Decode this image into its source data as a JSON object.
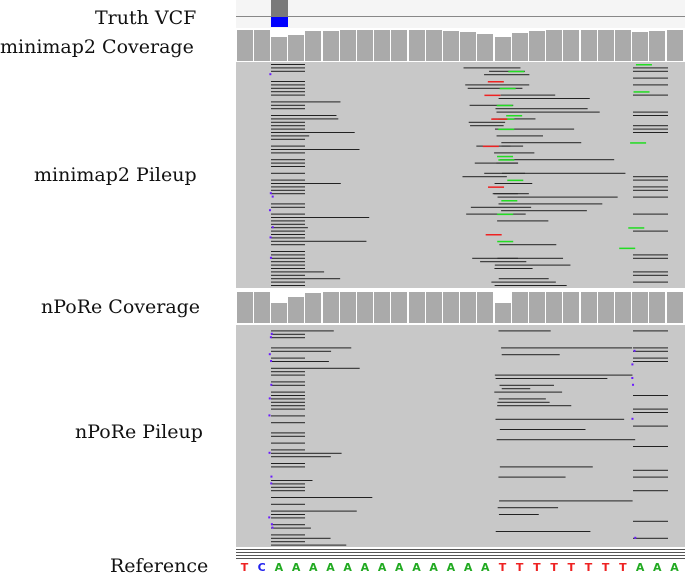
{
  "labels": {
    "truth_vcf": "Truth VCF",
    "minimap2_coverage": "minimap2 Coverage",
    "minimap2_pileup": "minimap2 Pileup",
    "npore_coverage": "nPoRe Coverage",
    "npore_pileup": "nPoRe Pileup",
    "reference": "Reference"
  },
  "reference": {
    "bases": [
      "T",
      "C",
      "A",
      "A",
      "A",
      "A",
      "A",
      "A",
      "A",
      "A",
      "A",
      "A",
      "A",
      "A",
      "A",
      "T",
      "T",
      "T",
      "T",
      "T",
      "T",
      "T",
      "T",
      "A",
      "A",
      "A"
    ]
  },
  "colors": {
    "background": "#ffffff",
    "pileup_background": "#c8c8c8",
    "coverage_bar": "#aaaaaa",
    "read": "#222222",
    "insertion": "#6a1bff",
    "mismatch_green": "#22dd22",
    "mismatch_red": "#ee2222",
    "vcf_variant": "#0000ff",
    "vcf_genotype": "#7a7a7a",
    "base_A": "#22aa22",
    "base_T": "#ee2222",
    "base_C": "#2222ee"
  }
}
